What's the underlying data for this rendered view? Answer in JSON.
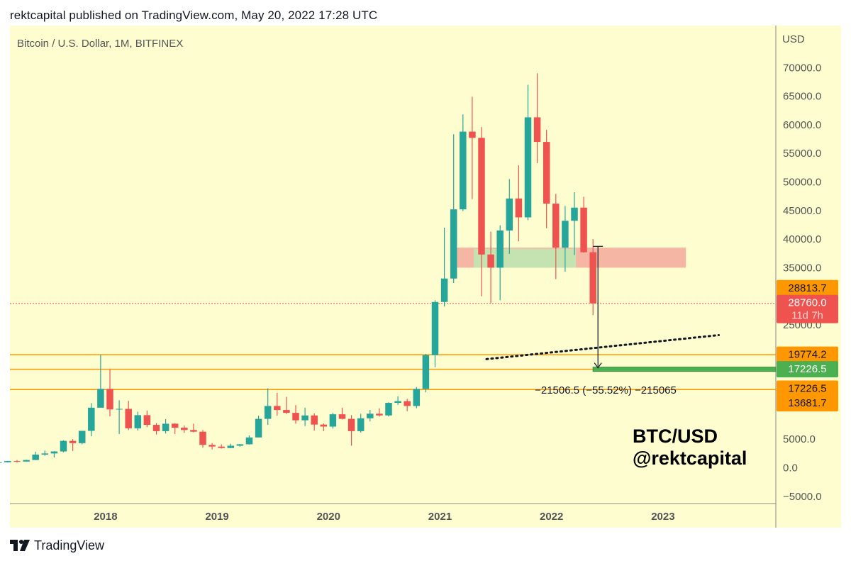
{
  "header": {
    "published_text": "rektcapital published on TradingView.com, May 20, 2022 17:28 UTC"
  },
  "colors": {
    "background": "#fdfdd0",
    "bull": "#26a69a",
    "bear": "#ef5350",
    "resistance_zone": "#f6b6a4",
    "support_zone": "#c4e3b1",
    "level_line": "#ff9800",
    "support_level": "#4caf50",
    "grid": "#ece9b4"
  },
  "chart_data": {
    "type": "candlestick",
    "title": "Bitcoin / U.S. Dollar, 1M, BITFINEX",
    "currency": "USD",
    "ylim": [
      -5000,
      71000
    ],
    "y_ticks": [
      "70000.0",
      "65000.0",
      "60000.0",
      "55000.0",
      "50000.0",
      "45000.0",
      "40000.0",
      "35000.0",
      "25000.0",
      "5000.0",
      "0.0",
      "−5000.0"
    ],
    "y_tick_values": [
      70000,
      65000,
      60000,
      55000,
      50000,
      45000,
      40000,
      35000,
      25000,
      5000,
      0,
      -5000
    ],
    "x_ticks": [
      "2018",
      "2019",
      "2020",
      "2021",
      "2022",
      "2023"
    ],
    "x_tick_dates": [
      "2018-01",
      "2019-01",
      "2020-01",
      "2021-01",
      "2022-01",
      "2023-01"
    ],
    "candles": [
      {
        "t": "2017-01",
        "o": 960,
        "h": 1150,
        "l": 750,
        "c": 965
      },
      {
        "t": "2017-02",
        "o": 965,
        "h": 1200,
        "l": 920,
        "c": 1190
      },
      {
        "t": "2017-03",
        "o": 1190,
        "h": 1350,
        "l": 890,
        "c": 1080
      },
      {
        "t": "2017-04",
        "o": 1080,
        "h": 1400,
        "l": 1060,
        "c": 1350
      },
      {
        "t": "2017-05",
        "o": 1350,
        "h": 2800,
        "l": 1350,
        "c": 2300
      },
      {
        "t": "2017-06",
        "o": 2300,
        "h": 3000,
        "l": 2100,
        "c": 2500
      },
      {
        "t": "2017-07",
        "o": 2500,
        "h": 2900,
        "l": 1800,
        "c": 2850
      },
      {
        "t": "2017-08",
        "o": 2850,
        "h": 4800,
        "l": 2700,
        "c": 4700
      },
      {
        "t": "2017-09",
        "o": 4700,
        "h": 5000,
        "l": 2950,
        "c": 4300
      },
      {
        "t": "2017-10",
        "o": 4300,
        "h": 6450,
        "l": 4100,
        "c": 6450
      },
      {
        "t": "2017-11",
        "o": 6450,
        "h": 11300,
        "l": 5500,
        "c": 10500
      },
      {
        "t": "2017-12",
        "o": 10500,
        "h": 19800,
        "l": 10500,
        "c": 13800
      },
      {
        "t": "2018-01",
        "o": 13800,
        "h": 17200,
        "l": 9000,
        "c": 10200
      },
      {
        "t": "2018-02",
        "o": 10200,
        "h": 11800,
        "l": 5900,
        "c": 10300
      },
      {
        "t": "2018-03",
        "o": 10300,
        "h": 11700,
        "l": 6600,
        "c": 6900
      },
      {
        "t": "2018-04",
        "o": 6900,
        "h": 9800,
        "l": 6500,
        "c": 9200
      },
      {
        "t": "2018-05",
        "o": 9200,
        "h": 10000,
        "l": 7100,
        "c": 7500
      },
      {
        "t": "2018-06",
        "o": 7500,
        "h": 7800,
        "l": 5800,
        "c": 6400
      },
      {
        "t": "2018-07",
        "o": 6400,
        "h": 8500,
        "l": 6000,
        "c": 7700
      },
      {
        "t": "2018-08",
        "o": 7700,
        "h": 7800,
        "l": 5900,
        "c": 7000
      },
      {
        "t": "2018-09",
        "o": 7000,
        "h": 7400,
        "l": 6100,
        "c": 6600
      },
      {
        "t": "2018-10",
        "o": 6600,
        "h": 7700,
        "l": 6200,
        "c": 6300
      },
      {
        "t": "2018-11",
        "o": 6300,
        "h": 6600,
        "l": 3500,
        "c": 4000
      },
      {
        "t": "2018-12",
        "o": 4000,
        "h": 4300,
        "l": 3200,
        "c": 3700
      },
      {
        "t": "2019-01",
        "o": 3700,
        "h": 4100,
        "l": 3350,
        "c": 3450
      },
      {
        "t": "2019-02",
        "o": 3450,
        "h": 4200,
        "l": 3400,
        "c": 3850
      },
      {
        "t": "2019-03",
        "o": 3850,
        "h": 4150,
        "l": 3700,
        "c": 4100
      },
      {
        "t": "2019-04",
        "o": 4100,
        "h": 5650,
        "l": 4050,
        "c": 5300
      },
      {
        "t": "2019-05",
        "o": 5300,
        "h": 9100,
        "l": 5300,
        "c": 8550
      },
      {
        "t": "2019-06",
        "o": 8550,
        "h": 13900,
        "l": 7500,
        "c": 10800
      },
      {
        "t": "2019-07",
        "o": 10800,
        "h": 13100,
        "l": 9100,
        "c": 10100
      },
      {
        "t": "2019-08",
        "o": 10100,
        "h": 12400,
        "l": 9400,
        "c": 9600
      },
      {
        "t": "2019-09",
        "o": 9600,
        "h": 10950,
        "l": 7700,
        "c": 8300
      },
      {
        "t": "2019-10",
        "o": 8300,
        "h": 10500,
        "l": 7300,
        "c": 9150
      },
      {
        "t": "2019-11",
        "o": 9150,
        "h": 9500,
        "l": 6500,
        "c": 7550
      },
      {
        "t": "2019-12",
        "o": 7550,
        "h": 7750,
        "l": 6400,
        "c": 7200
      },
      {
        "t": "2020-01",
        "o": 7200,
        "h": 9600,
        "l": 6850,
        "c": 9350
      },
      {
        "t": "2020-02",
        "o": 9350,
        "h": 10500,
        "l": 8450,
        "c": 8550
      },
      {
        "t": "2020-03",
        "o": 8550,
        "h": 9200,
        "l": 3850,
        "c": 6400
      },
      {
        "t": "2020-04",
        "o": 6400,
        "h": 9450,
        "l": 6150,
        "c": 8650
      },
      {
        "t": "2020-05",
        "o": 8650,
        "h": 10100,
        "l": 8100,
        "c": 9450
      },
      {
        "t": "2020-06",
        "o": 9450,
        "h": 10400,
        "l": 8950,
        "c": 9150
      },
      {
        "t": "2020-07",
        "o": 9150,
        "h": 11450,
        "l": 8950,
        "c": 11350
      },
      {
        "t": "2020-08",
        "o": 11350,
        "h": 12500,
        "l": 11000,
        "c": 11650
      },
      {
        "t": "2020-09",
        "o": 11650,
        "h": 12050,
        "l": 9900,
        "c": 10800
      },
      {
        "t": "2020-10",
        "o": 10800,
        "h": 14100,
        "l": 10400,
        "c": 13800
      },
      {
        "t": "2020-11",
        "o": 13800,
        "h": 19900,
        "l": 13200,
        "c": 19700
      },
      {
        "t": "2020-12",
        "o": 19700,
        "h": 29300,
        "l": 17600,
        "c": 29000
      },
      {
        "t": "2021-01",
        "o": 29000,
        "h": 42000,
        "l": 28200,
        "c": 33100
      },
      {
        "t": "2021-02",
        "o": 33100,
        "h": 58350,
        "l": 32300,
        "c": 45200
      },
      {
        "t": "2021-03",
        "o": 45200,
        "h": 61800,
        "l": 44900,
        "c": 58800
      },
      {
        "t": "2021-04",
        "o": 58800,
        "h": 64900,
        "l": 47000,
        "c": 57700
      },
      {
        "t": "2021-05",
        "o": 57700,
        "h": 59600,
        "l": 30000,
        "c": 37300
      },
      {
        "t": "2021-06",
        "o": 37300,
        "h": 41300,
        "l": 28800,
        "c": 35000
      },
      {
        "t": "2021-07",
        "o": 35000,
        "h": 42400,
        "l": 29300,
        "c": 41500
      },
      {
        "t": "2021-08",
        "o": 41500,
        "h": 50500,
        "l": 37400,
        "c": 47100
      },
      {
        "t": "2021-09",
        "o": 47100,
        "h": 52900,
        "l": 39600,
        "c": 43800
      },
      {
        "t": "2021-10",
        "o": 43800,
        "h": 67000,
        "l": 43300,
        "c": 61300
      },
      {
        "t": "2021-11",
        "o": 61300,
        "h": 69000,
        "l": 53300,
        "c": 57000
      },
      {
        "t": "2021-12",
        "o": 57000,
        "h": 59100,
        "l": 41900,
        "c": 46200
      },
      {
        "t": "2022-01",
        "o": 46200,
        "h": 47900,
        "l": 33000,
        "c": 38500
      },
      {
        "t": "2022-02",
        "o": 38500,
        "h": 45800,
        "l": 34300,
        "c": 43200
      },
      {
        "t": "2022-03",
        "o": 43200,
        "h": 48200,
        "l": 37200,
        "c": 45500
      },
      {
        "t": "2022-04",
        "o": 45500,
        "h": 47400,
        "l": 37600,
        "c": 37700
      },
      {
        "t": "2022-05",
        "o": 37700,
        "h": 40000,
        "l": 26700,
        "c": 28760
      }
    ],
    "zones": [
      {
        "name": "resistance",
        "from": "2021-02-15",
        "to": "2023-03-15",
        "y1": 35000,
        "y2": 38500
      },
      {
        "name": "support",
        "from": "2021-04-20",
        "to": "2022-03-20",
        "y1": 35000,
        "y2": 38300
      }
    ],
    "horizontal_levels": [
      {
        "value": 19774.2,
        "label": "19774.2"
      },
      {
        "value": 17226.5,
        "label": "17226.5"
      },
      {
        "value": 13681.7,
        "label": "13681.7"
      }
    ],
    "support_line": {
      "value": 17226.5,
      "from": "2022-05-15",
      "to": "2024-01-15"
    },
    "current_price": {
      "value": 28760.0,
      "label": "28760.0",
      "countdown": "11d 7h"
    },
    "price_labels": [
      {
        "value": 28813.7,
        "label": "28813.7",
        "kind": "orange"
      },
      {
        "value": 28760.0,
        "label": "28760.0",
        "kind": "red"
      },
      {
        "value": 19774.2,
        "label": "19774.2",
        "kind": "orange"
      },
      {
        "value": 17226.5,
        "label": "17226.5",
        "kind": "green"
      },
      {
        "value": 17226.5,
        "label": "17226.5",
        "kind": "orange"
      },
      {
        "value": 13681.7,
        "label": "13681.7",
        "kind": "orange"
      }
    ],
    "trendline": {
      "from": {
        "t": "2021-06-01",
        "v": 19000
      },
      "to": "2023-07-01",
      "end_v": 23200
    },
    "measure": {
      "from": {
        "t": "2022-06-01",
        "v": 38733
      },
      "to_v": 17226.5,
      "label": "−21506.5 (−55.52%) −215065"
    }
  },
  "watermark": {
    "line1": "BTC/USD",
    "line2": "@rektcapital"
  },
  "footer": {
    "brand": "TradingView"
  }
}
